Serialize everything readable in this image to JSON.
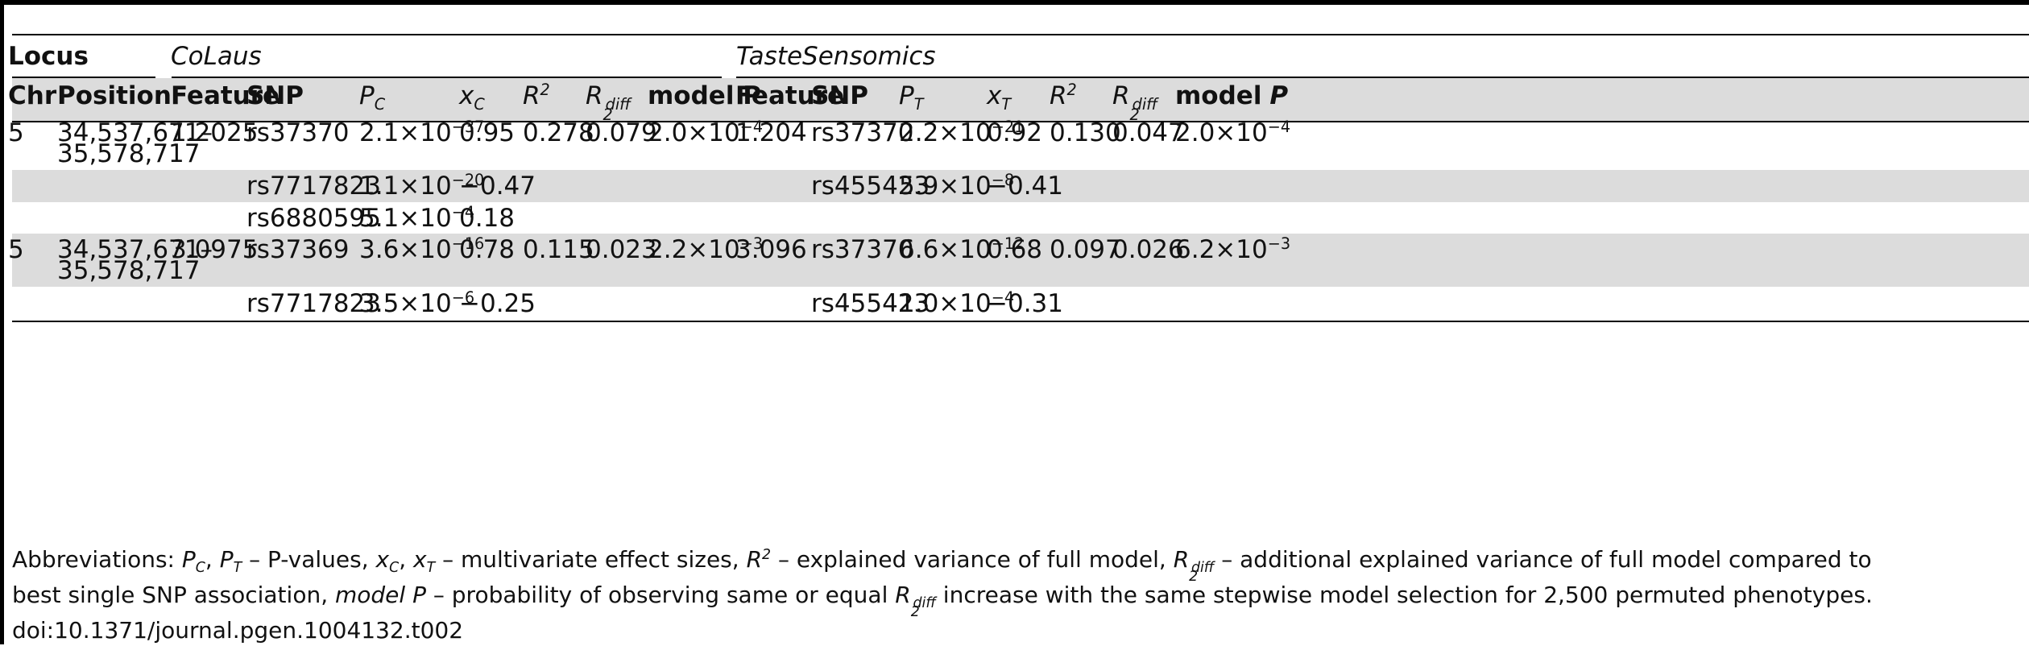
{
  "table": {
    "group_headers": {
      "locus": "Locus",
      "colaus": "CoLaus",
      "taste": "TasteSensomics"
    },
    "col_headers": {
      "chr": "Chr",
      "position": "Position",
      "feature_c": "Feature",
      "snp_c": "SNP",
      "p_c": "P",
      "p_c_sub": "C",
      "x_c": "x",
      "x_c_sub": "C",
      "r2_c": "R",
      "r2_c_sup": "2",
      "r2diff_c": "R",
      "r2diff_c_sup": "2",
      "r2diff_c_sub": "diff",
      "modelp_c": "model P",
      "feature_t": "Feature",
      "snp_t": "SNP",
      "p_t": "P",
      "p_t_sub": "T",
      "x_t": "x",
      "x_t_sub": "T",
      "r2_t": "R",
      "r2_t_sup": "2",
      "r2diff_t": "R",
      "r2diff_t_sup": "2",
      "r2diff_t_sub": "diff",
      "modelp_t_pre": "model",
      "modelp_t_p": "P"
    },
    "rows": [
      {
        "chr": "5",
        "pos1": "34,537,671–",
        "pos2": "35,578,717",
        "feature_c": "1.2025",
        "snp_c": "rs37370",
        "pc_m": "2.1×10",
        "pc_e": "−37",
        "xc": "0.95",
        "r2c": "0.278",
        "r2dc": "0.079",
        "mpc_m": "2.0×10",
        "mpc_e": "−4",
        "feature_t": "1.204",
        "snp_t": "rs37370",
        "pt_m": "2.2×10",
        "pt_e": "−21",
        "xt": "0.92",
        "r2t": "0.130",
        "r2dt": "0.047",
        "mpt_m": "2.0×10",
        "mpt_e": "−4"
      },
      {
        "snp_c": "rs7717823",
        "pc_m": "1.1×10",
        "pc_e": "−20",
        "xc": "−0.47",
        "snp_t": "rs455423",
        "pt_m": "5.9×10",
        "pt_e": "−8",
        "xt": "−0.41"
      },
      {
        "snp_c": "rs6880595",
        "pc_m": "5.1×10",
        "pc_e": "−4",
        "xc": "0.18"
      },
      {
        "chr": "5",
        "pos1": "34,537,671–",
        "pos2": "35,578,717",
        "feature_c": "3.0975",
        "snp_c": "rs37369",
        "pc_m": "3.6×10",
        "pc_e": "−16",
        "xc": "0.78",
        "r2c": "0.115",
        "r2dc": "0.023",
        "mpc_m": "2.2×10",
        "mpc_e": "−3",
        "feature_t": "3.096",
        "snp_t": "rs37370",
        "pt_m": "6.6×10",
        "pt_e": "−12",
        "xt": "0.68",
        "r2t": "0.097",
        "r2dt": "0.026",
        "mpt_m": "6.2×10",
        "mpt_e": "−3"
      },
      {
        "snp_c": "rs7717823",
        "pc_m": "3.5×10",
        "pc_e": "−6",
        "xc": "−0.25",
        "snp_t": "rs455423",
        "pt_m": "1.0×10",
        "pt_e": "−4",
        "xt": "−0.31"
      }
    ]
  },
  "footnote": {
    "abbrev": "Abbreviations: ",
    "pc": "P",
    "pc_sub": "C",
    "comma1": ", ",
    "pt": "P",
    "pt_sub": "T",
    "t1": " – P-values, ",
    "xc": "x",
    "xc_sub": "C",
    "comma2": ", ",
    "xt": "x",
    "xt_sub": "T",
    "t2": " – multivariate effect sizes, ",
    "r2": "R",
    "r2_sup": "2",
    "t3": " – explained variance of full model, ",
    "r2d": "R",
    "r2d_sup": "2",
    "r2d_sub": "diff",
    "t4": " – additional explained variance of full model compared to",
    "line2_a": "best single SNP association, ",
    "modelp": "model P",
    "line2_b": " – probability of observing same or equal ",
    "r2d2": "R",
    "r2d2_sup": "2",
    "r2d2_sub": "diff",
    "line2_c": " increase with the same stepwise model selection for 2,500 permuted phenotypes.",
    "doi": "doi:10.1371/journal.pgen.1004132.t002"
  }
}
